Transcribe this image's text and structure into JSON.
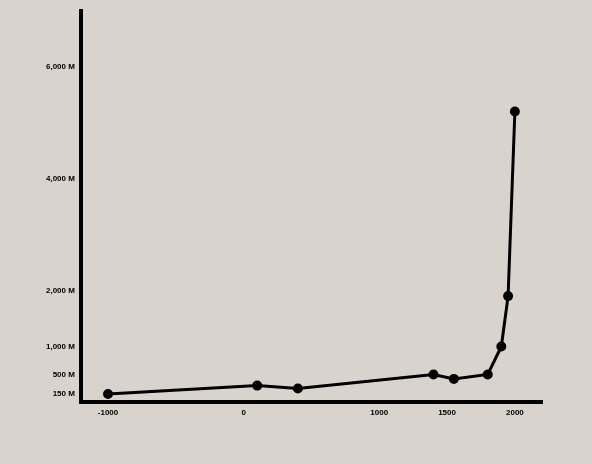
{
  "chart_data": {
    "type": "line",
    "x": [
      -1000,
      100,
      400,
      1400,
      1550,
      1800,
      1900,
      1950,
      2000
    ],
    "values": [
      150,
      300,
      250,
      500,
      420,
      500,
      1000,
      1900,
      5200
    ],
    "color": "#000000",
    "marker": "circle",
    "line_style": "solid",
    "xlim": [
      -1200,
      2200
    ],
    "xticks": [
      -1000,
      0,
      1000,
      1500,
      2000
    ],
    "ylim": [
      0,
      7000
    ],
    "yticks": [
      {
        "value": 150,
        "label": "150 M"
      },
      {
        "value": 500,
        "label": "500 M"
      },
      {
        "value": 1000,
        "label": "1,000 M"
      },
      {
        "value": 2000,
        "label": "2,000 M"
      },
      {
        "value": 4000,
        "label": "4,000 M"
      },
      {
        "value": 6000,
        "label": "6,000 M"
      }
    ],
    "grid": false
  }
}
